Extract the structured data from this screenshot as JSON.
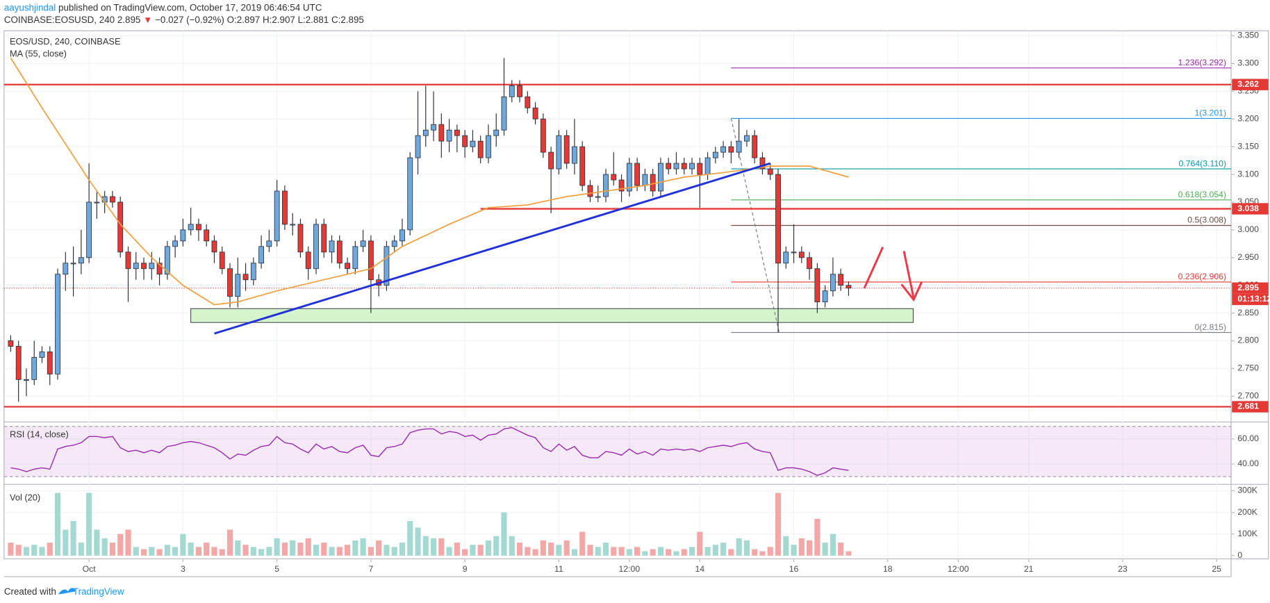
{
  "header": {
    "author": "aayushjindal",
    "published": "published on TradingView.com, October 17, 2019 06:46:54 UTC",
    "symbol": "COINBASE:EOSUSD, 240",
    "last": "2.895",
    "arrow": "▼",
    "change": "−0.027 (−0.92%)",
    "ohlc": "O:2.897 H:2.907 L:2.881 C:2.895"
  },
  "footer": {
    "created": "Created with",
    "brand": "TradingView"
  },
  "chart_data": [
    {
      "type": "candlestick",
      "title": "EOS/USD, 240, COINBASE",
      "grid": true,
      "up_color": "#6fa8dc",
      "down_color": "#e53935",
      "wick_color": "#2a2e39",
      "xlim": [
        -43.4,
        583.4
      ],
      "xticks": [
        {
          "value": 0,
          "label": "Oct"
        },
        {
          "value": 48,
          "label": "3"
        },
        {
          "value": 96,
          "label": "5"
        },
        {
          "value": 144,
          "label": "7"
        },
        {
          "value": 192,
          "label": "9"
        },
        {
          "value": 240,
          "label": "11"
        },
        {
          "value": 276,
          "label": "12:00"
        },
        {
          "value": 312,
          "label": "14"
        },
        {
          "value": 360,
          "label": "16"
        },
        {
          "value": 408,
          "label": "18"
        },
        {
          "value": 444,
          "label": "12:00"
        },
        {
          "value": 480,
          "label": "21"
        },
        {
          "value": 528,
          "label": "23"
        },
        {
          "value": 576,
          "label": "25"
        }
      ],
      "ylim": [
        2.655,
        3.359
      ],
      "yticks": [
        {
          "value": 2.7,
          "label": "2.700"
        },
        {
          "value": 2.75,
          "label": "2.750"
        },
        {
          "value": 2.8,
          "label": "2.800"
        },
        {
          "value": 2.85,
          "label": "2.850"
        },
        {
          "value": 2.9,
          "label": "2.900"
        },
        {
          "value": 2.95,
          "label": "2.950"
        },
        {
          "value": 3.0,
          "label": "3.000"
        },
        {
          "value": 3.05,
          "label": "3.050"
        },
        {
          "value": 3.1,
          "label": "3.100"
        },
        {
          "value": 3.15,
          "label": "3.150"
        },
        {
          "value": 3.2,
          "label": "3.200"
        },
        {
          "value": 3.25,
          "label": "3.250"
        },
        {
          "value": 3.3,
          "label": "3.300"
        },
        {
          "value": 3.35,
          "label": "3.350"
        }
      ],
      "x": [
        -40,
        -36,
        -32,
        -28,
        -24,
        -20,
        -16,
        -12,
        -8,
        -4,
        0,
        4,
        8,
        12,
        16,
        20,
        24,
        28,
        32,
        36,
        40,
        44,
        48,
        52,
        56,
        60,
        64,
        68,
        72,
        76,
        80,
        84,
        88,
        92,
        96,
        100,
        104,
        108,
        112,
        116,
        120,
        124,
        128,
        132,
        136,
        140,
        144,
        148,
        152,
        156,
        160,
        164,
        168,
        172,
        176,
        180,
        184,
        188,
        192,
        196,
        200,
        204,
        208,
        212,
        216,
        220,
        224,
        228,
        232,
        236,
        240,
        244,
        248,
        252,
        256,
        260,
        264,
        268,
        272,
        276,
        280,
        284,
        288,
        292,
        296,
        300,
        304,
        308,
        312,
        316,
        320,
        324,
        328,
        332,
        336,
        340,
        344,
        348,
        352,
        356,
        360,
        364,
        368,
        372,
        376,
        380,
        384,
        388
      ],
      "open": [
        2.8,
        2.79,
        2.73,
        2.73,
        2.77,
        2.78,
        2.74,
        2.92,
        2.94,
        2.94,
        2.95,
        3.05,
        3.05,
        3.06,
        3.05,
        2.96,
        2.93,
        2.94,
        2.93,
        2.94,
        2.92,
        2.97,
        2.98,
        3.0,
        3.01,
        3.0,
        2.98,
        2.96,
        2.93,
        2.88,
        2.92,
        2.91,
        2.94,
        2.97,
        2.98,
        3.07,
        3.01,
        3.01,
        2.96,
        2.93,
        3.01,
        2.96,
        2.98,
        2.94,
        2.93,
        2.97,
        2.98,
        2.91,
        2.9,
        2.97,
        2.98,
        3.0,
        3.13,
        3.17,
        3.18,
        3.19,
        3.16,
        3.18,
        3.17,
        3.15,
        3.16,
        3.13,
        3.17,
        3.18,
        3.24,
        3.26,
        3.24,
        3.22,
        3.2,
        3.14,
        3.11,
        3.17,
        3.12,
        3.15,
        3.08,
        3.06,
        3.06,
        3.1,
        3.09,
        3.07,
        3.12,
        3.08,
        3.1,
        3.07,
        3.12,
        3.11,
        3.12,
        3.11,
        3.12,
        3.1,
        3.13,
        3.14,
        3.15,
        3.14,
        3.16,
        3.17,
        3.13,
        3.11,
        3.1,
        2.94,
        2.96,
        2.96,
        2.95,
        2.93,
        2.87,
        2.89,
        2.92,
        2.9
      ],
      "high": [
        2.81,
        2.8,
        2.75,
        2.8,
        2.79,
        2.79,
        2.93,
        2.96,
        2.97,
        3.0,
        3.12,
        3.07,
        3.07,
        3.07,
        3.06,
        2.97,
        2.96,
        2.95,
        2.96,
        2.95,
        2.98,
        2.99,
        3.02,
        3.04,
        3.02,
        3.01,
        2.99,
        2.97,
        2.94,
        2.95,
        2.94,
        2.95,
        2.99,
        3.0,
        3.09,
        3.08,
        3.03,
        3.02,
        2.97,
        3.02,
        3.02,
        2.99,
        2.99,
        2.95,
        2.98,
        3.0,
        2.99,
        2.92,
        2.98,
        2.99,
        3.02,
        3.14,
        3.25,
        3.26,
        3.25,
        3.21,
        3.2,
        3.19,
        3.18,
        3.18,
        3.17,
        3.19,
        3.21,
        3.31,
        3.27,
        3.27,
        3.25,
        3.23,
        3.21,
        3.15,
        3.18,
        3.18,
        3.2,
        3.16,
        3.09,
        3.08,
        3.11,
        3.14,
        3.1,
        3.13,
        3.13,
        3.11,
        3.11,
        3.13,
        3.13,
        3.14,
        3.13,
        3.13,
        3.13,
        3.14,
        3.15,
        3.16,
        3.16,
        3.2,
        3.18,
        3.18,
        3.14,
        3.12,
        3.11,
        2.97,
        3.01,
        2.97,
        2.96,
        2.94,
        2.9,
        2.95,
        2.93,
        2.907
      ],
      "low": [
        2.78,
        2.69,
        2.7,
        2.72,
        2.76,
        2.72,
        2.73,
        2.89,
        2.88,
        2.92,
        2.94,
        3.02,
        3.03,
        3.04,
        2.95,
        2.87,
        2.91,
        2.91,
        2.91,
        2.9,
        2.91,
        2.95,
        2.97,
        2.99,
        2.98,
        2.97,
        2.94,
        2.92,
        2.86,
        2.86,
        2.89,
        2.9,
        2.93,
        2.96,
        2.97,
        3.0,
        2.99,
        2.95,
        2.91,
        2.92,
        2.95,
        2.94,
        2.93,
        2.92,
        2.92,
        2.96,
        2.85,
        2.88,
        2.89,
        2.96,
        2.97,
        2.99,
        3.1,
        3.15,
        3.16,
        3.13,
        3.14,
        3.14,
        3.13,
        3.14,
        3.12,
        3.12,
        3.15,
        3.17,
        3.23,
        3.23,
        3.21,
        3.19,
        3.13,
        3.03,
        3.1,
        3.11,
        3.1,
        3.07,
        3.05,
        3.05,
        3.05,
        3.08,
        3.05,
        3.06,
        3.07,
        3.07,
        3.06,
        3.06,
        3.1,
        3.1,
        3.1,
        3.1,
        3.04,
        3.09,
        3.12,
        3.13,
        3.12,
        3.13,
        3.15,
        3.12,
        3.1,
        3.09,
        2.815,
        2.93,
        2.94,
        2.94,
        2.91,
        2.85,
        2.86,
        2.88,
        2.89,
        2.881
      ],
      "close": [
        2.79,
        2.73,
        2.73,
        2.77,
        2.78,
        2.74,
        2.92,
        2.94,
        2.94,
        2.95,
        3.05,
        3.05,
        3.06,
        3.05,
        2.96,
        2.93,
        2.94,
        2.93,
        2.94,
        2.92,
        2.97,
        2.98,
        3.0,
        3.01,
        3.0,
        2.98,
        2.96,
        2.93,
        2.88,
        2.92,
        2.91,
        2.94,
        2.97,
        2.98,
        3.07,
        3.01,
        3.01,
        2.96,
        2.93,
        3.01,
        2.96,
        2.98,
        2.94,
        2.93,
        2.97,
        2.98,
        2.91,
        2.9,
        2.97,
        2.98,
        3.0,
        3.13,
        3.17,
        3.18,
        3.19,
        3.16,
        3.18,
        3.17,
        3.15,
        3.16,
        3.13,
        3.17,
        3.18,
        3.24,
        3.26,
        3.24,
        3.22,
        3.2,
        3.14,
        3.11,
        3.17,
        3.12,
        3.15,
        3.08,
        3.06,
        3.06,
        3.1,
        3.09,
        3.07,
        3.12,
        3.08,
        3.1,
        3.07,
        3.12,
        3.11,
        3.12,
        3.11,
        3.12,
        3.1,
        3.13,
        3.14,
        3.15,
        3.14,
        3.16,
        3.17,
        3.13,
        3.11,
        3.1,
        2.94,
        2.96,
        2.96,
        2.95,
        2.93,
        2.87,
        2.89,
        2.92,
        2.9,
        2.895
      ],
      "series": [
        {
          "name": "MA (55, close)",
          "color": "#f0a040",
          "x": [
            -40,
            -24,
            0,
            16,
            32,
            48,
            64,
            76,
            96,
            120,
            144,
            160,
            184,
            204,
            224,
            244,
            264,
            284,
            304,
            328,
            348,
            368,
            388
          ],
          "values": [
            3.31,
            3.22,
            3.09,
            3.01,
            2.95,
            2.9,
            2.865,
            2.87,
            2.89,
            2.91,
            2.93,
            2.97,
            3.01,
            3.04,
            3.045,
            3.06,
            3.07,
            3.08,
            3.095,
            3.105,
            3.115,
            3.115,
            3.095
          ]
        }
      ],
      "hlines": [
        {
          "value": 3.262,
          "color": "#e53935"
        },
        {
          "value": 3.038,
          "from": 200,
          "color": "#e53935"
        },
        {
          "value": 2.681,
          "color": "#e53935"
        }
      ],
      "last": {
        "value": 2.895,
        "timer": "01:13:12",
        "color": "#e53935"
      },
      "trend_lines": [
        {
          "x": [
            64,
            348
          ],
          "values": [
            2.813,
            3.12
          ],
          "color": "#2130d9"
        }
      ],
      "zones": [
        {
          "x": [
            52,
            421
          ],
          "values": [
            2.833,
            2.858
          ],
          "color": "#d4f5cc"
        }
      ],
      "fib_start": 328,
      "fib_levels": [
        {
          "label": "1.236(3.292)",
          "value": 3.292,
          "color": "#9c27b0"
        },
        {
          "label": "1(3.201)",
          "value": 3.201,
          "color": "#2196f3"
        },
        {
          "label": "0.764(3.110)",
          "value": 3.11,
          "color": "#0097a7"
        },
        {
          "label": "0.618(3.054)",
          "value": 3.054,
          "color": "#4caf50"
        },
        {
          "label": "0.5(3.008)",
          "value": 3.008,
          "color": "#6d4c41"
        },
        {
          "label": "0.236(2.906)",
          "value": 2.906,
          "color": "#e53935"
        },
        {
          "label": "0(2.815)",
          "value": 2.815,
          "color": "#787b86"
        }
      ]
    },
    {
      "type": "line",
      "title": "RSI (14, close)",
      "color": "#9c27b0",
      "levels": [
        30,
        70
      ],
      "ylim": [
        24.5,
        72.9
      ],
      "yticks": [
        {
          "value": 40,
          "label": "40.00"
        },
        {
          "value": 60,
          "label": "60.00"
        }
      ],
      "values": [
        37,
        36,
        34,
        36,
        37,
        36,
        52,
        54,
        55,
        57,
        62,
        62,
        61,
        62,
        53,
        50,
        51,
        49,
        51,
        49,
        54,
        55,
        57,
        58,
        57,
        55,
        53,
        49,
        44,
        48,
        47,
        51,
        54,
        55,
        62,
        57,
        56,
        52,
        49,
        56,
        52,
        54,
        50,
        49,
        53,
        55,
        47,
        46,
        53,
        54,
        56,
        65,
        67,
        68,
        68,
        64,
        66,
        65,
        62,
        63,
        59,
        63,
        64,
        68,
        69,
        66,
        63,
        61,
        53,
        50,
        56,
        51,
        54,
        47,
        45,
        45,
        50,
        49,
        47,
        52,
        48,
        50,
        47,
        52,
        51,
        52,
        51,
        52,
        50,
        53,
        54,
        55,
        54,
        56,
        57,
        52,
        50,
        49,
        35,
        37,
        37,
        36,
        34,
        31,
        33,
        37,
        36,
        35
      ]
    },
    {
      "type": "bar",
      "title": "Vol (20)",
      "up_color": "#a3d9d0",
      "down_color": "#f4a7a7",
      "ylim": [
        -15000,
        326000
      ],
      "yticks": [
        0,
        {
          "value": 100000,
          "label": "100K"
        },
        {
          "value": 200000,
          "label": "200K"
        },
        {
          "value": 300000,
          "label": "300K"
        }
      ],
      "values": [
        60000,
        50000,
        40000,
        50000,
        40000,
        60000,
        290000,
        120000,
        160000,
        60000,
        290000,
        120000,
        80000,
        60000,
        100000,
        120000,
        40000,
        30000,
        40000,
        30000,
        50000,
        40000,
        100000,
        60000,
        40000,
        60000,
        40000,
        30000,
        120000,
        70000,
        50000,
        40000,
        30000,
        40000,
        80000,
        60000,
        70000,
        60000,
        80000,
        50000,
        60000,
        40000,
        40000,
        50000,
        70000,
        80000,
        40000,
        70000,
        50000,
        40000,
        60000,
        160000,
        130000,
        90000,
        80000,
        80000,
        40000,
        60000,
        30000,
        50000,
        50000,
        70000,
        90000,
        200000,
        90000,
        60000,
        40000,
        30000,
        70000,
        60000,
        50000,
        70000,
        30000,
        110000,
        50000,
        40000,
        60000,
        40000,
        40000,
        30000,
        40000,
        20000,
        30000,
        40000,
        30000,
        20000,
        30000,
        40000,
        110000,
        40000,
        50000,
        60000,
        30000,
        80000,
        70000,
        30000,
        20000,
        40000,
        290000,
        90000,
        50000,
        80000,
        70000,
        170000,
        60000,
        100000,
        60000,
        20000
      ]
    }
  ]
}
